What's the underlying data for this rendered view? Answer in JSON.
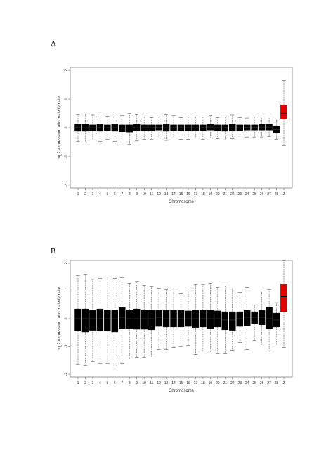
{
  "panels": [
    {
      "label": "A"
    },
    {
      "label": "B"
    }
  ],
  "colors": {
    "box": "#000000",
    "highlight": "#e00000"
  },
  "chart_data": [
    {
      "type": "box",
      "panel": "A",
      "xlabel": "Chromosome",
      "ylabel": "log2 expression ratio male/female",
      "categories": [
        "1",
        "2",
        "3",
        "4",
        "5",
        "6",
        "7",
        "8",
        "9",
        "10",
        "11",
        "12",
        "13",
        "14",
        "15",
        "16",
        "17",
        "18",
        "19",
        "20",
        "21",
        "22",
        "23",
        "24",
        "25",
        "26",
        "27",
        "28",
        "Z"
      ],
      "ylim": [
        -2.1,
        2.1
      ],
      "yticks": [
        -2,
        -1,
        0,
        1,
        2
      ],
      "yticklabels": [
        "-2",
        "-1",
        "0",
        "1",
        "2"
      ],
      "highlight_category": "Z",
      "boxes": [
        {
          "q1": -0.12,
          "median": 0.0,
          "q3": 0.12,
          "whisker_low": -0.48,
          "whisker_high": 0.45
        },
        {
          "q1": -0.12,
          "median": 0.0,
          "q3": 0.12,
          "whisker_low": -0.5,
          "whisker_high": 0.47
        },
        {
          "q1": -0.1,
          "median": 0.0,
          "q3": 0.1,
          "whisker_low": -0.42,
          "whisker_high": 0.44
        },
        {
          "q1": -0.12,
          "median": 0.0,
          "q3": 0.12,
          "whisker_low": -0.48,
          "whisker_high": 0.48
        },
        {
          "q1": -0.1,
          "median": 0.0,
          "q3": 0.1,
          "whisker_low": -0.4,
          "whisker_high": 0.4
        },
        {
          "q1": -0.12,
          "median": 0.0,
          "q3": 0.12,
          "whisker_low": -0.48,
          "whisker_high": 0.47
        },
        {
          "q1": -0.14,
          "median": -0.02,
          "q3": 0.1,
          "whisker_low": -0.5,
          "whisker_high": 0.42
        },
        {
          "q1": -0.15,
          "median": -0.02,
          "q3": 0.1,
          "whisker_low": -0.58,
          "whisker_high": 0.5
        },
        {
          "q1": -0.1,
          "median": 0.0,
          "q3": 0.12,
          "whisker_low": -0.46,
          "whisker_high": 0.46
        },
        {
          "q1": -0.1,
          "median": 0.0,
          "q3": 0.1,
          "whisker_low": -0.4,
          "whisker_high": 0.38
        },
        {
          "q1": -0.1,
          "median": 0.0,
          "q3": 0.1,
          "whisker_low": -0.4,
          "whisker_high": 0.36
        },
        {
          "q1": -0.08,
          "median": 0.02,
          "q3": 0.1,
          "whisker_low": -0.36,
          "whisker_high": 0.38
        },
        {
          "q1": -0.12,
          "median": 0.0,
          "q3": 0.12,
          "whisker_low": -0.44,
          "whisker_high": 0.45
        },
        {
          "q1": -0.1,
          "median": 0.0,
          "q3": 0.1,
          "whisker_low": -0.36,
          "whisker_high": 0.42
        },
        {
          "q1": -0.1,
          "median": 0.0,
          "q3": 0.1,
          "whisker_low": -0.4,
          "whisker_high": 0.36
        },
        {
          "q1": -0.1,
          "median": 0.0,
          "q3": 0.1,
          "whisker_low": -0.4,
          "whisker_high": 0.38
        },
        {
          "q1": -0.1,
          "median": 0.0,
          "q3": 0.1,
          "whisker_low": -0.36,
          "whisker_high": 0.38
        },
        {
          "q1": -0.1,
          "median": 0.0,
          "q3": 0.1,
          "whisker_low": -0.4,
          "whisker_high": 0.38
        },
        {
          "q1": -0.08,
          "median": 0.02,
          "q3": 0.12,
          "whisker_low": -0.36,
          "whisker_high": 0.42
        },
        {
          "q1": -0.1,
          "median": 0.0,
          "q3": 0.1,
          "whisker_low": -0.38,
          "whisker_high": 0.36
        },
        {
          "q1": -0.12,
          "median": 0.0,
          "q3": 0.1,
          "whisker_low": -0.42,
          "whisker_high": 0.38
        },
        {
          "q1": -0.1,
          "median": 0.0,
          "q3": 0.12,
          "whisker_low": -0.38,
          "whisker_high": 0.44
        },
        {
          "q1": -0.1,
          "median": 0.0,
          "q3": 0.1,
          "whisker_low": -0.36,
          "whisker_high": 0.36
        },
        {
          "q1": -0.08,
          "median": 0.02,
          "q3": 0.1,
          "whisker_low": -0.32,
          "whisker_high": 0.34
        },
        {
          "q1": -0.08,
          "median": 0.02,
          "q3": 0.1,
          "whisker_low": -0.32,
          "whisker_high": 0.38
        },
        {
          "q1": -0.08,
          "median": 0.02,
          "q3": 0.12,
          "whisker_low": -0.32,
          "whisker_high": 0.38
        },
        {
          "q1": -0.08,
          "median": 0.02,
          "q3": 0.12,
          "whisker_low": -0.3,
          "whisker_high": 0.38
        },
        {
          "q1": -0.18,
          "median": -0.06,
          "q3": 0.06,
          "whisker_low": -0.4,
          "whisker_high": 0.3
        },
        {
          "q1": 0.3,
          "median": 0.5,
          "q3": 0.8,
          "whisker_low": -0.62,
          "whisker_high": 1.65
        }
      ]
    },
    {
      "type": "box",
      "panel": "B",
      "xlabel": "Chromosome",
      "ylabel": "log2 expression ratio male/female",
      "categories": [
        "1",
        "2",
        "3",
        "4",
        "5",
        "6",
        "7",
        "8",
        "9",
        "10",
        "11",
        "12",
        "13",
        "14",
        "15",
        "16",
        "17",
        "18",
        "19",
        "20",
        "21",
        "22",
        "23",
        "24",
        "25",
        "26",
        "27",
        "28",
        "Z"
      ],
      "ylim": [
        -2.1,
        2.1
      ],
      "yticks": [
        -2,
        -1,
        0,
        1,
        2
      ],
      "yticklabels": [
        "-2",
        "-1",
        "0",
        "1",
        "2"
      ],
      "highlight_category": "Z",
      "boxes": [
        {
          "q1": -0.45,
          "median": 0.0,
          "q3": 0.35,
          "whisker_low": -1.65,
          "whisker_high": 1.55
        },
        {
          "q1": -0.48,
          "median": 0.0,
          "q3": 0.35,
          "whisker_low": -1.68,
          "whisker_high": 1.58
        },
        {
          "q1": -0.42,
          "median": 0.0,
          "q3": 0.3,
          "whisker_low": -1.55,
          "whisker_high": 1.42
        },
        {
          "q1": -0.45,
          "median": 0.0,
          "q3": 0.35,
          "whisker_low": -1.6,
          "whisker_high": 1.45
        },
        {
          "q1": -0.45,
          "median": 0.0,
          "q3": 0.32,
          "whisker_low": -1.6,
          "whisker_high": 1.5
        },
        {
          "q1": -0.48,
          "median": 0.0,
          "q3": 0.32,
          "whisker_low": -1.7,
          "whisker_high": 1.45
        },
        {
          "q1": -0.35,
          "median": 0.05,
          "q3": 0.4,
          "whisker_low": -1.6,
          "whisker_high": 1.48
        },
        {
          "q1": -0.35,
          "median": 0.0,
          "q3": 0.32,
          "whisker_low": -1.45,
          "whisker_high": 1.28
        },
        {
          "q1": -0.38,
          "median": 0.0,
          "q3": 0.35,
          "whisker_low": -1.4,
          "whisker_high": 1.32
        },
        {
          "q1": -0.38,
          "median": 0.0,
          "q3": 0.32,
          "whisker_low": -1.4,
          "whisker_high": 1.2
        },
        {
          "q1": -0.4,
          "median": 0.0,
          "q3": 0.3,
          "whisker_low": -1.38,
          "whisker_high": 1.15
        },
        {
          "q1": -0.28,
          "median": 0.05,
          "q3": 0.3,
          "whisker_low": -1.1,
          "whisker_high": 1.08
        },
        {
          "q1": -0.3,
          "median": 0.0,
          "q3": 0.3,
          "whisker_low": -1.1,
          "whisker_high": 1.05
        },
        {
          "q1": -0.3,
          "median": 0.0,
          "q3": 0.3,
          "whisker_low": -1.05,
          "whisker_high": 1.1
        },
        {
          "q1": -0.3,
          "median": 0.0,
          "q3": 0.3,
          "whisker_low": -1.0,
          "whisker_high": 0.9
        },
        {
          "q1": -0.28,
          "median": 0.0,
          "q3": 0.28,
          "whisker_low": -0.98,
          "whisker_high": 1.0
        },
        {
          "q1": -0.32,
          "median": 0.0,
          "q3": 0.3,
          "whisker_low": -1.3,
          "whisker_high": 1.22
        },
        {
          "q1": -0.3,
          "median": 0.0,
          "q3": 0.32,
          "whisker_low": -1.2,
          "whisker_high": 1.22
        },
        {
          "q1": -0.35,
          "median": 0.0,
          "q3": 0.3,
          "whisker_low": -1.2,
          "whisker_high": 1.28
        },
        {
          "q1": -0.3,
          "median": 0.0,
          "q3": 0.28,
          "whisker_low": -1.25,
          "whisker_high": 1.12
        },
        {
          "q1": -0.4,
          "median": -0.05,
          "q3": 0.25,
          "whisker_low": -1.25,
          "whisker_high": 1.18
        },
        {
          "q1": -0.42,
          "median": -0.05,
          "q3": 0.25,
          "whisker_low": -1.15,
          "whisker_high": 1.1
        },
        {
          "q1": -0.28,
          "median": 0.0,
          "q3": 0.25,
          "whisker_low": -0.85,
          "whisker_high": 0.95
        },
        {
          "q1": -0.25,
          "median": 0.05,
          "q3": 0.3,
          "whisker_low": -1.1,
          "whisker_high": 1.12
        },
        {
          "q1": -0.18,
          "median": 0.05,
          "q3": 0.25,
          "whisker_low": -0.8,
          "whisker_high": 0.5
        },
        {
          "q1": -0.22,
          "median": 0.05,
          "q3": 0.3,
          "whisker_low": -0.95,
          "whisker_high": 1.0
        },
        {
          "q1": -0.35,
          "median": 0.0,
          "q3": 0.4,
          "whisker_low": -1.2,
          "whisker_high": 1.05
        },
        {
          "q1": -0.3,
          "median": -0.05,
          "q3": 0.2,
          "whisker_low": -0.95,
          "whisker_high": 0.58
        },
        {
          "q1": 0.25,
          "median": 0.8,
          "q3": 1.25,
          "whisker_low": -1.05,
          "whisker_high": 2.1
        }
      ]
    }
  ]
}
